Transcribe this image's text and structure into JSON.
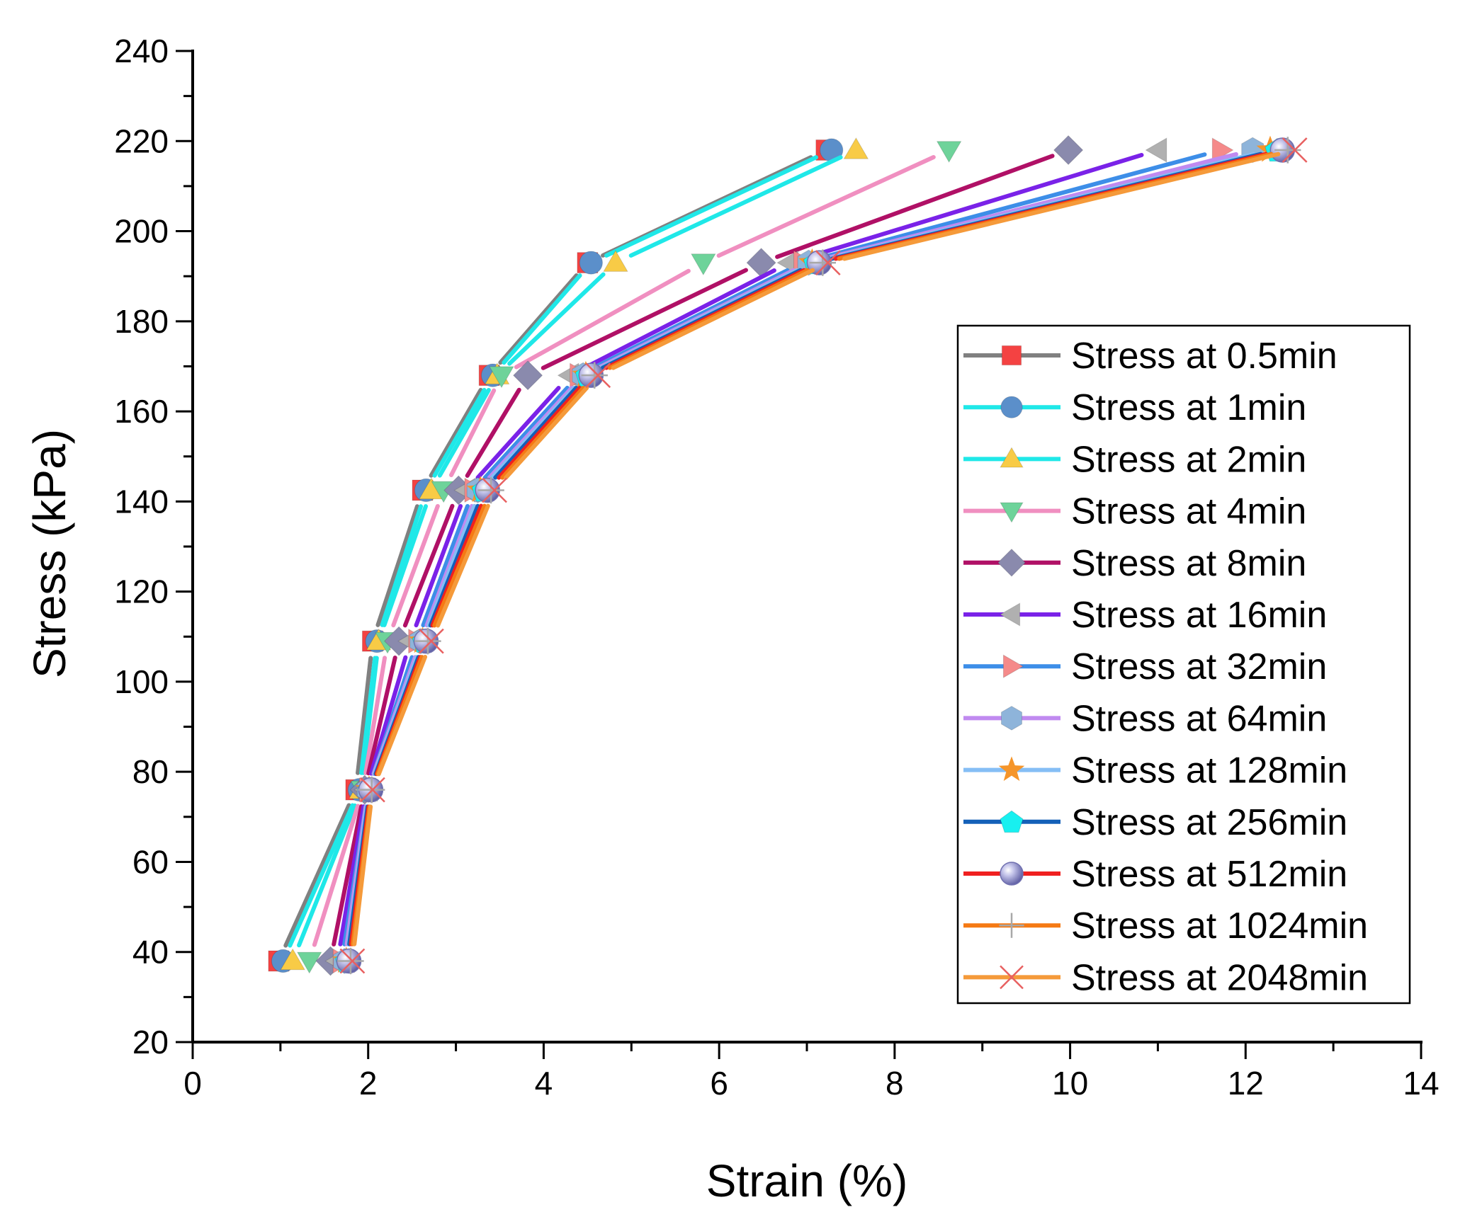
{
  "chart_data": {
    "type": "line",
    "title": "",
    "xlabel": "Strain (%)",
    "ylabel": "Stress (kPa)",
    "xlim": [
      0,
      14
    ],
    "ylim": [
      20,
      240
    ],
    "xticks": [
      "0",
      "2",
      "4",
      "6",
      "8",
      "10",
      "12",
      "14"
    ],
    "yticks": [
      "20",
      "40",
      "60",
      "80",
      "100",
      "120",
      "140",
      "160",
      "180",
      "200",
      "220",
      "240"
    ],
    "grid": false,
    "legend_position": "right",
    "stress_levels": [
      38,
      76,
      109,
      142.5,
      168,
      193,
      218
    ],
    "series": [
      {
        "name": "Stress at 0.5min",
        "line_color": "#808080",
        "marker": "square",
        "marker_color": "#F44242",
        "x": [
          0.98,
          1.86,
          2.05,
          2.62,
          3.38,
          4.5,
          7.22
        ]
      },
      {
        "name": "Stress at 1min",
        "line_color": "#1FE8E8",
        "marker": "circle",
        "marker_color": "#5B8FCA",
        "x": [
          1.03,
          1.9,
          2.1,
          2.66,
          3.42,
          4.54,
          7.28
        ]
      },
      {
        "name": "Stress at 2min",
        "line_color": "#1FE8E8",
        "marker": "triangle-up",
        "marker_color": "#F8CB46",
        "x": [
          1.14,
          1.92,
          2.12,
          2.72,
          3.47,
          4.82,
          7.56
        ]
      },
      {
        "name": "Stress at 4min",
        "line_color": "#F08FC0",
        "marker": "triangle-down",
        "marker_color": "#6ED39A",
        "x": [
          1.33,
          1.94,
          2.22,
          2.86,
          3.52,
          5.82,
          8.62
        ]
      },
      {
        "name": "Stress at 8min",
        "line_color": "#B01066",
        "marker": "diamond",
        "marker_color": "#8A8AAD",
        "x": [
          1.57,
          1.96,
          2.35,
          3.03,
          3.82,
          6.48,
          9.98
        ]
      },
      {
        "name": "Stress at 16min",
        "line_color": "#7A22E8",
        "marker": "triangle-left",
        "marker_color": "#B0B0B0",
        "x": [
          1.65,
          1.98,
          2.48,
          3.12,
          4.3,
          6.8,
          11.0
        ]
      },
      {
        "name": "Stress at 32min",
        "line_color": "#3D8EE8",
        "marker": "triangle-right",
        "marker_color": "#F58A8A",
        "x": [
          1.7,
          2.0,
          2.56,
          3.2,
          4.4,
          6.95,
          11.72
        ]
      },
      {
        "name": "Stress at 64min",
        "line_color": "#C08AF0",
        "marker": "hexagon",
        "marker_color": "#8EB4DA",
        "x": [
          1.73,
          2.0,
          2.6,
          3.25,
          4.45,
          7.02,
          12.08
        ]
      },
      {
        "name": "Stress at 128min",
        "line_color": "#85BEF5",
        "marker": "star",
        "marker_color": "#F5952A",
        "x": [
          1.75,
          2.01,
          2.62,
          3.28,
          4.48,
          7.06,
          12.28
        ]
      },
      {
        "name": "Stress at 256min",
        "line_color": "#1460B8",
        "marker": "pentagon",
        "marker_color": "#18F0F0",
        "x": [
          1.76,
          2.02,
          2.64,
          3.32,
          4.5,
          7.1,
          12.36
        ]
      },
      {
        "name": "Stress at 512min",
        "line_color": "#F02020",
        "marker": "sphere",
        "marker_color": "#9E9ED8",
        "x": [
          1.78,
          2.03,
          2.66,
          3.36,
          4.54,
          7.14,
          12.42
        ]
      },
      {
        "name": "Stress at 1024min",
        "line_color": "#F57A14",
        "marker": "plus",
        "marker_color": "#A8A8A8",
        "x": [
          1.8,
          2.04,
          2.68,
          3.4,
          4.58,
          7.18,
          12.48
        ]
      },
      {
        "name": "Stress at 2048min",
        "line_color": "#F59A3A",
        "marker": "cross",
        "marker_color": "#E86060",
        "x": [
          1.82,
          2.05,
          2.72,
          3.44,
          4.62,
          7.24,
          12.56
        ]
      }
    ]
  }
}
